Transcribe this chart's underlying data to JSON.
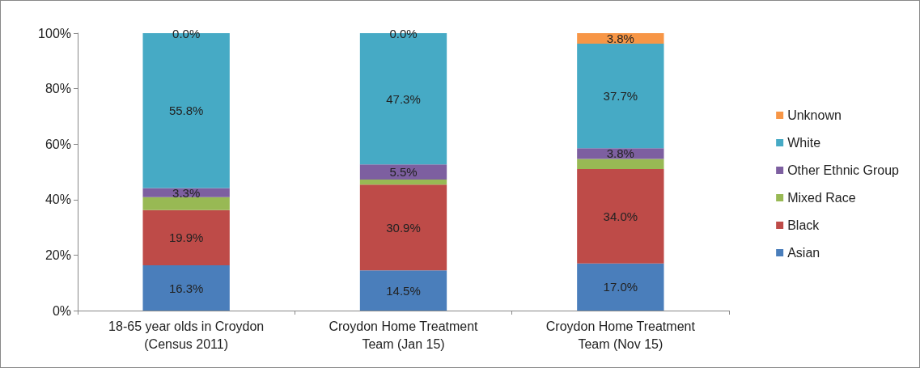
{
  "chart_data": {
    "type": "bar",
    "stacked": true,
    "categories": [
      "18-65 year olds in Croydon\n(Census 2011)",
      "Croydon Home Treatment\nTeam (Jan 15)",
      "Croydon Home Treatment\nTeam (Nov 15)"
    ],
    "series": [
      {
        "name": "Asian",
        "color": "#4a7ebb",
        "values": [
          16.3,
          14.5,
          17.0
        ],
        "value_labels": [
          "16.3%",
          "14.5%",
          "17.0%"
        ]
      },
      {
        "name": "Black",
        "color": "#be4b48",
        "values": [
          19.9,
          30.9,
          34.0
        ],
        "value_labels": [
          "19.9%",
          "30.9%",
          "34.0%"
        ]
      },
      {
        "name": "Mixed Race",
        "color": "#98b954",
        "values": [
          4.7,
          1.8,
          3.7
        ],
        "value_labels": [
          null,
          null,
          null
        ]
      },
      {
        "name": "Other Ethnic Group",
        "color": "#7d5fa0",
        "values": [
          3.3,
          5.5,
          3.8
        ],
        "value_labels": [
          "3.3%",
          "5.5%",
          "3.8%"
        ]
      },
      {
        "name": "White",
        "color": "#46aac5",
        "values": [
          55.8,
          47.3,
          37.7
        ],
        "value_labels": [
          "55.8%",
          "47.3%",
          "37.7%"
        ]
      },
      {
        "name": "Unknown",
        "color": "#f79646",
        "values": [
          0.0,
          0.0,
          3.8
        ],
        "value_labels": [
          "0.0%",
          "0.0%",
          "3.8%"
        ]
      }
    ],
    "ylim": [
      0,
      100
    ],
    "yticks": [
      {
        "value": 0,
        "label": "0%"
      },
      {
        "value": 20,
        "label": "20%"
      },
      {
        "value": 40,
        "label": "40%"
      },
      {
        "value": 60,
        "label": "60%"
      },
      {
        "value": 80,
        "label": "80%"
      },
      {
        "value": 100,
        "label": "100%"
      }
    ],
    "grid": false,
    "legend": "right"
  }
}
